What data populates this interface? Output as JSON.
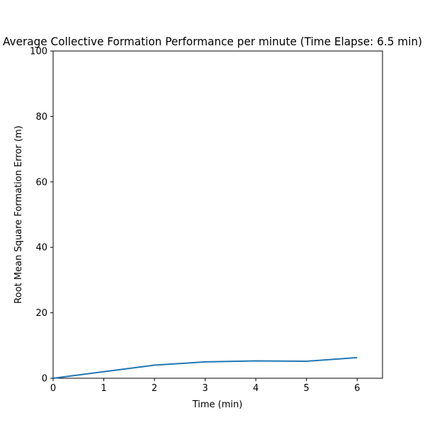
{
  "chart_data": {
    "type": "line",
    "title": "Average Collective Formation Performance per minute (Time Elapse: 6.5 min)",
    "xlabel": "Time (min)",
    "ylabel": "Root Mean Square Formation Error (m)",
    "xlim": [
      0,
      6.5
    ],
    "ylim": [
      0,
      100
    ],
    "xticks": [
      "0",
      "1",
      "2",
      "3",
      "4",
      "5",
      "6"
    ],
    "yticks": [
      "0",
      "20",
      "40",
      "60",
      "80",
      "100"
    ],
    "grid": false,
    "legend": "none",
    "series": [
      {
        "x": [
          0,
          1,
          2,
          3,
          4,
          5,
          6
        ],
        "values": [
          0.0,
          2.0,
          4.0,
          5.0,
          5.3,
          5.2,
          6.3
        ],
        "color": "#1f77b4"
      }
    ]
  }
}
